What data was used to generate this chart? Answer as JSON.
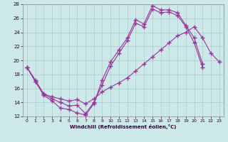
{
  "xlabel": "Windchill (Refroidissement éolien,°C)",
  "xlim": [
    -0.5,
    23.5
  ],
  "ylim": [
    12,
    28
  ],
  "xticks": [
    0,
    1,
    2,
    3,
    4,
    5,
    6,
    7,
    8,
    9,
    10,
    11,
    12,
    13,
    14,
    15,
    16,
    17,
    18,
    19,
    20,
    21,
    22,
    23
  ],
  "yticks": [
    12,
    14,
    16,
    18,
    20,
    22,
    24,
    26,
    28
  ],
  "line_color": "#993399",
  "bg_color": "#cce8e8",
  "grid_color": "#aacccc",
  "line1_x": [
    0,
    1,
    2,
    3,
    4,
    5,
    6,
    7,
    8,
    9,
    10,
    11,
    12,
    13,
    14,
    15,
    16,
    17,
    18,
    19,
    20,
    21
  ],
  "line1_y": [
    19.0,
    17.0,
    15.0,
    14.2,
    13.2,
    13.0,
    12.5,
    12.2,
    13.8,
    17.2,
    19.8,
    21.5,
    23.2,
    25.8,
    25.2,
    27.8,
    27.2,
    27.2,
    26.8,
    25.0,
    23.2,
    19.5
  ],
  "line2_x": [
    0,
    1,
    2,
    3,
    4,
    5,
    6,
    7,
    8,
    9,
    10,
    11,
    12,
    13,
    14,
    15,
    16,
    17,
    18,
    19,
    20,
    21
  ],
  "line2_y": [
    19.0,
    17.0,
    15.2,
    14.5,
    14.0,
    13.5,
    13.6,
    12.4,
    14.0,
    16.5,
    19.2,
    21.0,
    22.8,
    25.3,
    24.8,
    27.3,
    26.8,
    26.9,
    26.4,
    24.8,
    22.5,
    19.0
  ],
  "line3_x": [
    0,
    1,
    2,
    3,
    4,
    5,
    6,
    7,
    8,
    9,
    10,
    11,
    12,
    13,
    14,
    15,
    16,
    17,
    18,
    19,
    20,
    21,
    22,
    23
  ],
  "line3_y": [
    19.0,
    17.2,
    15.2,
    14.8,
    14.5,
    14.2,
    14.4,
    13.8,
    14.5,
    15.5,
    16.2,
    16.8,
    17.5,
    18.5,
    19.5,
    20.5,
    21.5,
    22.5,
    23.5,
    24.0,
    24.8,
    23.2,
    21.0,
    19.8
  ]
}
